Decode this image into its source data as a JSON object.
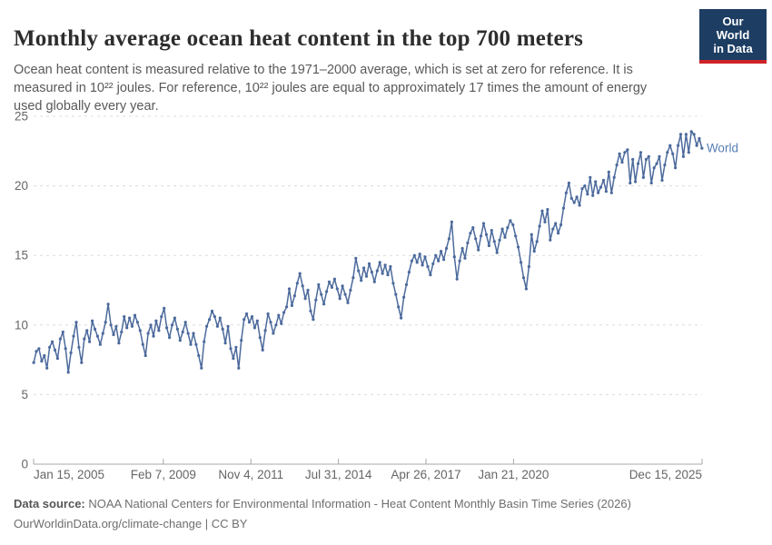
{
  "header": {
    "title": "Monthly average ocean heat content in the top 700 meters",
    "subtitle": "Ocean heat content is measured relative to the 1971–2000 average, which is set at zero for reference. It is measured in 10²² joules. For reference, 10²² joules are equal to approximately 17 times the amount of energy used globally every year.",
    "logo": {
      "line1": "Our World",
      "line2": "in Data",
      "bg_color": "#1d3d63",
      "accent_color": "#cd2328"
    }
  },
  "chart_data": {
    "type": "line",
    "title": "Monthly average ocean heat content in the top 700 meters",
    "unit": "10²² joules",
    "entity_label": "World",
    "line_color": "#4c6a9c",
    "label_color": "#577eb4",
    "grid": true,
    "grid_color": "#dcdcdc",
    "axis_color": "#a8a8a8",
    "tick_label_color": "#666666",
    "ylim": [
      0,
      25
    ],
    "y_ticks": [
      0,
      5,
      10,
      15,
      20,
      25
    ],
    "x_ticks": [
      {
        "label": "Jan 15, 2005",
        "t": 2005.04,
        "align": "start"
      },
      {
        "label": "Feb 7, 2009",
        "t": 2009.1,
        "align": "middle"
      },
      {
        "label": "Nov 4, 2011",
        "t": 2011.84,
        "align": "middle"
      },
      {
        "label": "Jul 31, 2014",
        "t": 2014.58,
        "align": "middle"
      },
      {
        "label": "Apr 26, 2017",
        "t": 2017.32,
        "align": "middle"
      },
      {
        "label": "Jan 21, 2020",
        "t": 2020.06,
        "align": "middle"
      },
      {
        "label": "Dec 15, 2025",
        "t": 2025.96,
        "align": "end"
      }
    ],
    "x_start_year": 2005,
    "x_end_year": 2025,
    "series": [
      {
        "name": "World",
        "monthly_values": [
          7.3,
          8.1,
          8.3,
          7.4,
          7.8,
          6.9,
          8.4,
          8.8,
          8.2,
          7.6,
          9.0,
          9.5,
          8.3,
          6.6,
          8.0,
          9.2,
          10.2,
          8.4,
          7.3,
          9.0,
          9.6,
          8.8,
          10.3,
          9.7,
          9.2,
          8.6,
          9.4,
          10.2,
          11.5,
          10.0,
          9.3,
          9.9,
          8.7,
          9.5,
          10.6,
          9.8,
          10.5,
          9.9,
          10.7,
          10.2,
          9.6,
          8.6,
          7.8,
          9.4,
          10.0,
          9.2,
          10.3,
          9.6,
          10.6,
          11.2,
          9.8,
          9.1,
          10.0,
          10.5,
          9.7,
          8.9,
          9.5,
          10.2,
          9.4,
          8.6,
          9.4,
          8.6,
          7.8,
          6.9,
          8.8,
          9.9,
          10.4,
          11.0,
          10.6,
          9.9,
          10.5,
          9.7,
          8.7,
          9.9,
          8.3,
          7.6,
          8.4,
          6.9,
          8.9,
          10.4,
          10.8,
          10.2,
          10.6,
          9.8,
          10.3,
          9.1,
          8.2,
          9.6,
          10.8,
          10.2,
          9.4,
          10.0,
          10.7,
          10.1,
          10.9,
          11.3,
          12.6,
          11.4,
          12.1,
          13.0,
          13.7,
          12.8,
          11.9,
          12.5,
          11.0,
          10.4,
          11.8,
          12.9,
          12.2,
          11.5,
          12.4,
          13.1,
          12.7,
          13.3,
          12.6,
          11.9,
          12.8,
          12.2,
          11.6,
          12.5,
          13.4,
          14.8,
          13.9,
          13.2,
          14.1,
          13.5,
          14.4,
          13.8,
          13.1,
          13.9,
          14.5,
          13.7,
          14.3,
          13.6,
          14.2,
          13.0,
          12.2,
          11.3,
          10.5,
          12.0,
          12.9,
          13.8,
          14.6,
          15.0,
          14.5,
          15.1,
          14.3,
          14.9,
          14.2,
          13.6,
          14.4,
          15.0,
          14.6,
          15.3,
          14.7,
          15.5,
          16.2,
          17.4,
          14.9,
          13.3,
          14.6,
          15.5,
          14.8,
          15.9,
          16.6,
          17.0,
          16.2,
          15.4,
          16.4,
          17.3,
          16.5,
          15.7,
          16.8,
          16.0,
          15.2,
          16.1,
          16.9,
          16.3,
          17.0,
          17.5,
          17.2,
          16.4,
          15.6,
          14.5,
          13.4,
          12.6,
          14.2,
          16.5,
          15.3,
          16.0,
          17.1,
          18.2,
          17.4,
          18.3,
          16.1,
          16.9,
          17.3,
          16.6,
          17.2,
          18.4,
          19.5,
          20.2,
          19.1,
          18.8,
          19.2,
          18.6,
          19.8,
          20.0,
          19.4,
          20.6,
          19.3,
          20.3,
          19.5,
          19.9,
          20.4,
          19.6,
          21.0,
          19.5,
          20.6,
          21.5,
          22.3,
          21.7,
          22.4,
          22.6,
          20.2,
          21.9,
          20.3,
          21.6,
          22.4,
          20.6,
          21.9,
          22.1,
          20.2,
          21.3,
          21.6,
          22.1,
          20.4,
          21.5,
          22.4,
          22.9,
          22.3,
          21.3,
          22.9,
          23.7,
          22.1,
          23.7,
          22.4,
          23.9,
          23.7,
          22.9,
          23.4,
          22.7
        ]
      }
    ],
    "legend_position": "end-of-line"
  },
  "footer": {
    "source_label": "Data source:",
    "source_text": " NOAA National Centers for Environmental Information - Heat Content Monthly Basin Time Series (2026)",
    "link_text": "OurWorldinData.org/climate-change",
    "separator": " | ",
    "license_text": "CC BY"
  }
}
